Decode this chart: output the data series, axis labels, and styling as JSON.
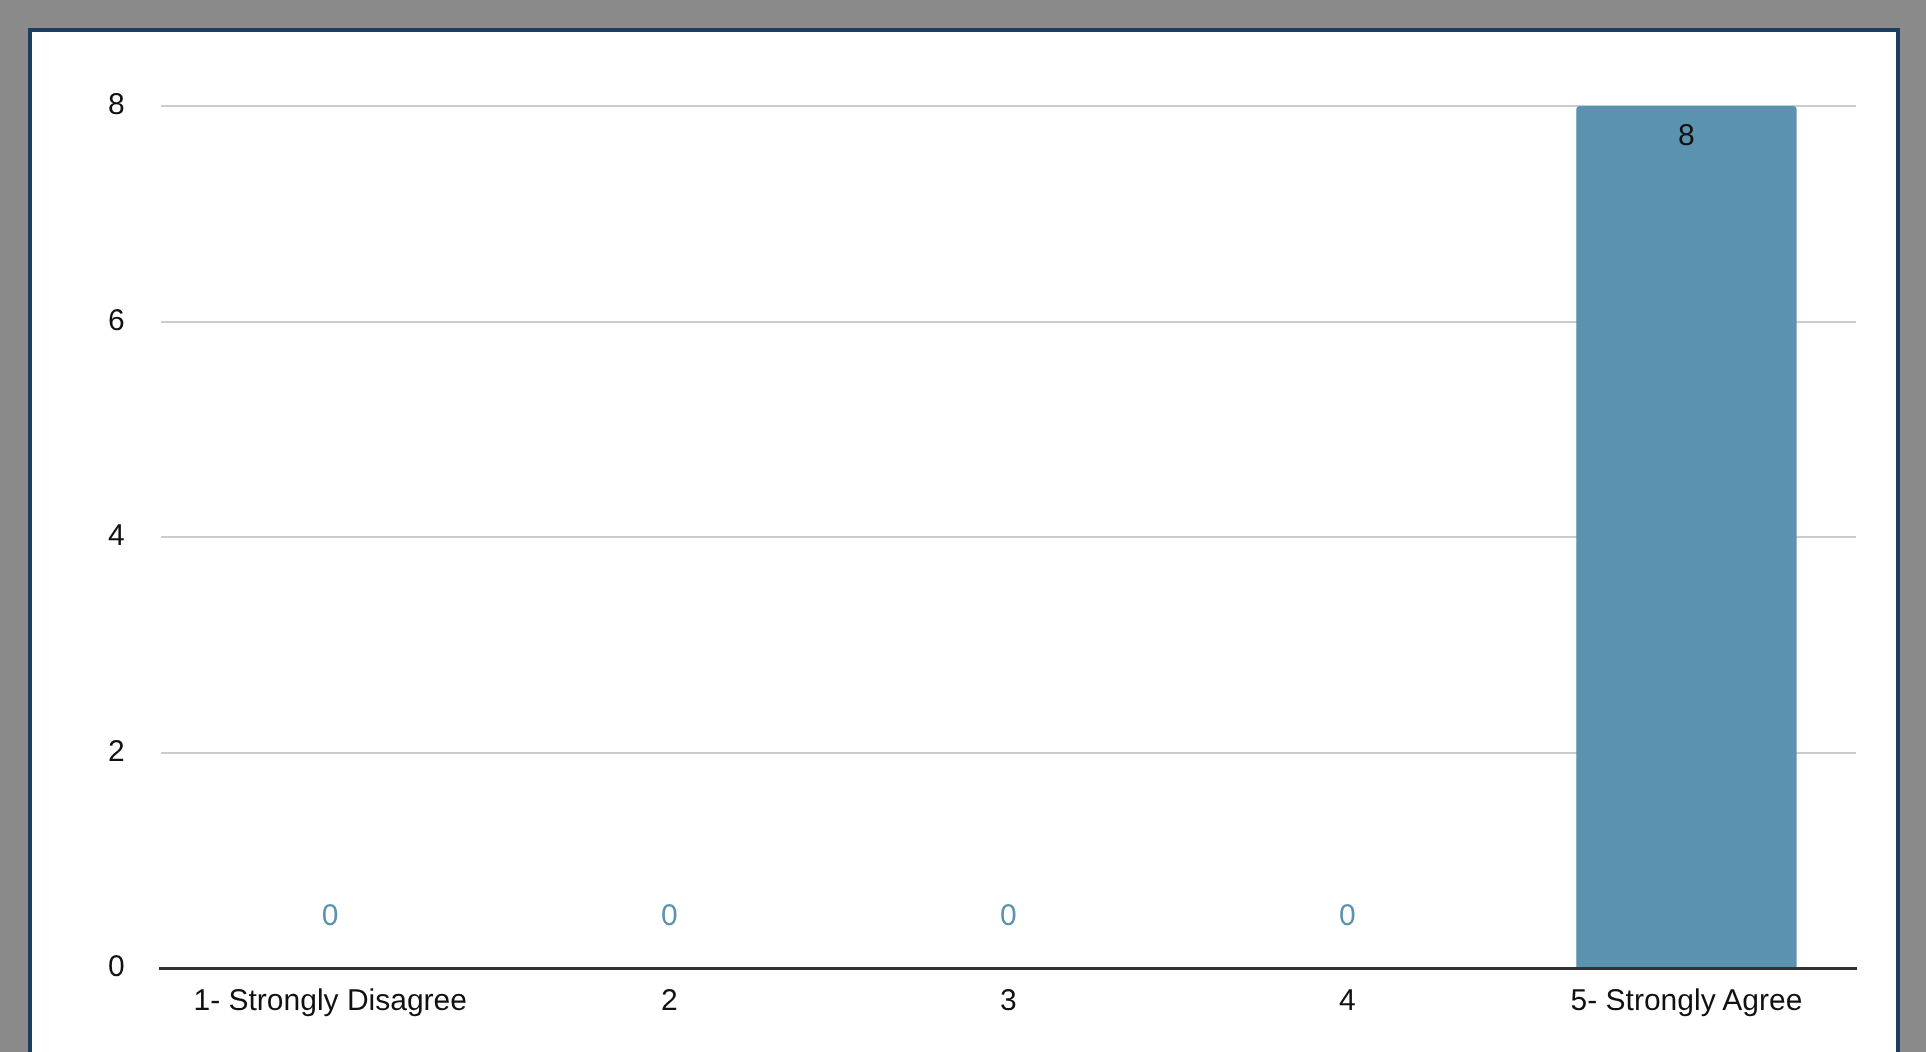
{
  "chart_data": {
    "type": "bar",
    "categories": [
      "1- Strongly Disagree",
      "2",
      "3",
      "4",
      "5- Strongly Agree"
    ],
    "values": [
      0,
      0,
      0,
      0,
      8
    ],
    "color": "#5b92b0",
    "ylim": [
      0,
      8
    ],
    "yticks": [
      0,
      2,
      4,
      6,
      8
    ],
    "grid": "y",
    "data_labels": true,
    "legend": false
  }
}
